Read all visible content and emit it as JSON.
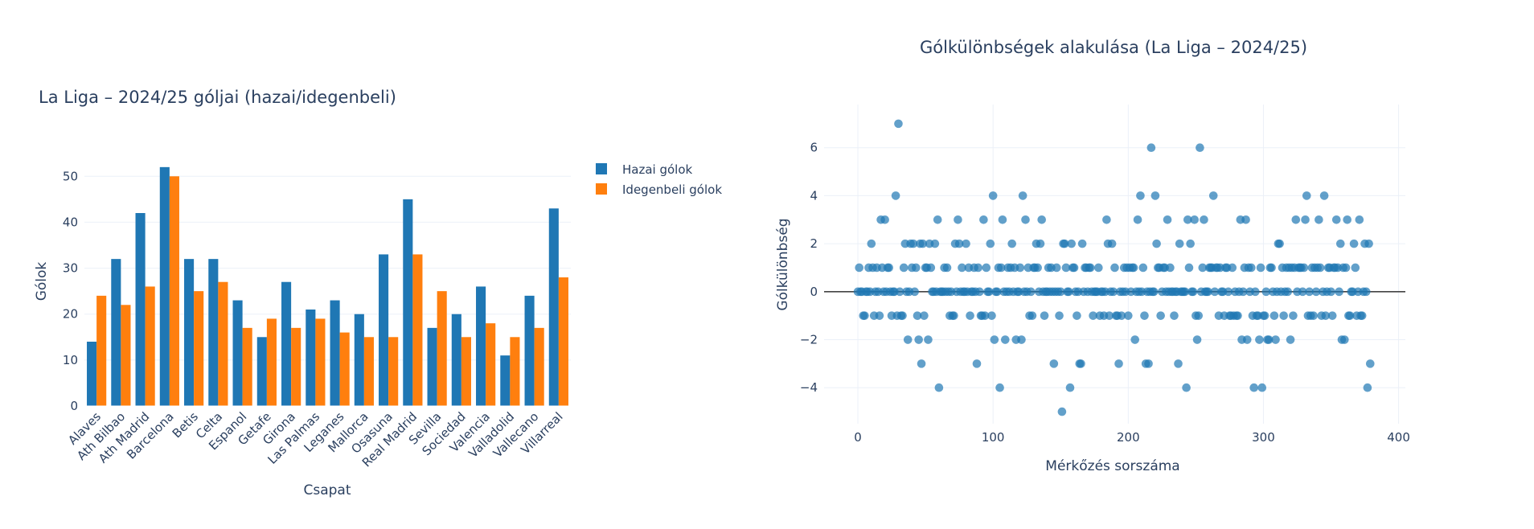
{
  "chart_data": [
    {
      "type": "bar",
      "title": "La Liga – 2024/25 góljai (hazai/idegenbeli)",
      "xlabel": "Csapat",
      "ylabel": "Gólok",
      "ylim": [
        0,
        56
      ],
      "yticks": [
        0,
        10,
        20,
        30,
        40,
        50
      ],
      "grid": true,
      "legend_position": "right",
      "categories": [
        "Alaves",
        "Ath Bilbao",
        "Ath Madrid",
        "Barcelona",
        "Betis",
        "Celta",
        "Espanol",
        "Getafe",
        "Girona",
        "Las Palmas",
        "Leganes",
        "Mallorca",
        "Osasuna",
        "Real Madrid",
        "Sevilla",
        "Sociedad",
        "Valencia",
        "Valladolid",
        "Vallecano",
        "Villarreal"
      ],
      "series": [
        {
          "name": "Hazai gólok",
          "color": "#1f77b4",
          "values": [
            14,
            32,
            42,
            52,
            32,
            32,
            23,
            15,
            27,
            21,
            23,
            20,
            33,
            45,
            17,
            20,
            26,
            11,
            24,
            43
          ]
        },
        {
          "name": "Idegenbeli gólok",
          "color": "#ff7f0e",
          "values": [
            24,
            22,
            26,
            50,
            25,
            27,
            17,
            19,
            17,
            19,
            16,
            15,
            15,
            33,
            25,
            15,
            18,
            15,
            17,
            28
          ]
        }
      ]
    },
    {
      "type": "scatter",
      "title": "Gólkülönbségek alakulása (La Liga – 2024/25)",
      "xlabel": "Mérkőzés sorszáma",
      "ylabel": "Gólkülönbség",
      "xlim": [
        -25,
        405
      ],
      "ylim": [
        -5.5,
        7.8
      ],
      "xticks": [
        0,
        100,
        200,
        300,
        400
      ],
      "yticks": [
        -4,
        -2,
        0,
        2,
        4,
        6
      ],
      "grid": true,
      "zero_line": true,
      "marker_color": "#1f77b4",
      "x": [
        0,
        1,
        2,
        3,
        4,
        5,
        6,
        7,
        8,
        9,
        10,
        11,
        12,
        13,
        14,
        15,
        16,
        17,
        18,
        19,
        20,
        21,
        22,
        23,
        24,
        25,
        26,
        27,
        28,
        29,
        30,
        31,
        32,
        33,
        34,
        35,
        36,
        37,
        38,
        39,
        40,
        41,
        42,
        43,
        44,
        45,
        46,
        47,
        48,
        49,
        50,
        51,
        52,
        53,
        54,
        55,
        56,
        57,
        58,
        59,
        60,
        61,
        62,
        63,
        64,
        65,
        66,
        67,
        68,
        69,
        70,
        71,
        72,
        73,
        74,
        75,
        76,
        77,
        78,
        79,
        80,
        81,
        82,
        83,
        84,
        85,
        86,
        87,
        88,
        89,
        90,
        91,
        92,
        93,
        94,
        95,
        96,
        97,
        98,
        99,
        100,
        101,
        102,
        103,
        104,
        105,
        106,
        107,
        108,
        109,
        110,
        111,
        112,
        113,
        114,
        115,
        116,
        117,
        118,
        119,
        120,
        121,
        122,
        123,
        124,
        125,
        126,
        127,
        128,
        129,
        130,
        131,
        132,
        133,
        134,
        135,
        136,
        137,
        138,
        139,
        140,
        141,
        142,
        143,
        144,
        145,
        146,
        147,
        148,
        149,
        150,
        151,
        152,
        153,
        154,
        155,
        156,
        157,
        158,
        159,
        160,
        161,
        162,
        163,
        164,
        165,
        166,
        167,
        168,
        169,
        170,
        171,
        172,
        173,
        174,
        175,
        176,
        177,
        178,
        179,
        180,
        181,
        182,
        183,
        184,
        185,
        186,
        187,
        188,
        189,
        190,
        191,
        192,
        193,
        194,
        195,
        196,
        197,
        198,
        199,
        200,
        201,
        202,
        203,
        204,
        205,
        206,
        207,
        208,
        209,
        210,
        211,
        212,
        213,
        214,
        215,
        216,
        217,
        218,
        219,
        220,
        221,
        222,
        223,
        224,
        225,
        226,
        227,
        228,
        229,
        230,
        231,
        232,
        233,
        234,
        235,
        236,
        237,
        238,
        239,
        240,
        241,
        242,
        243,
        244,
        245,
        246,
        247,
        248,
        249,
        250,
        251,
        252,
        253,
        254,
        255,
        256,
        257,
        258,
        259,
        260,
        261,
        262,
        263,
        264,
        265,
        266,
        267,
        268,
        269,
        270,
        271,
        272,
        273,
        274,
        275,
        276,
        277,
        278,
        279,
        280,
        281,
        282,
        283,
        284,
        285,
        286,
        287,
        288,
        289,
        290,
        291,
        292,
        293,
        294,
        295,
        296,
        297,
        298,
        299,
        300,
        301,
        302,
        303,
        304,
        305,
        306,
        307,
        308,
        309,
        310,
        311,
        312,
        313,
        314,
        315,
        316,
        317,
        318,
        319,
        320,
        321,
        322,
        323,
        324,
        325,
        326,
        327,
        328,
        329,
        330,
        331,
        332,
        333,
        334,
        335,
        336,
        337,
        338,
        339,
        340,
        341,
        342,
        343,
        344,
        345,
        346,
        347,
        348,
        349,
        350,
        351,
        352,
        353,
        354,
        355,
        356,
        357,
        358,
        359,
        360,
        361,
        362,
        363,
        364,
        365,
        366,
        367,
        368,
        369,
        370,
        371,
        372,
        373,
        374,
        375,
        376,
        377,
        378,
        379
      ],
      "y": [
        0,
        1,
        0,
        0,
        -1,
        -1,
        0,
        0,
        1,
        0,
        2,
        1,
        -1,
        0,
        1,
        0,
        -1,
        3,
        1,
        0,
        3,
        0,
        1,
        1,
        0,
        -1,
        0,
        0,
        4,
        -1,
        7,
        0,
        -1,
        -1,
        1,
        2,
        0,
        -2,
        0,
        2,
        1,
        2,
        0,
        1,
        -1,
        -2,
        2,
        -3,
        2,
        -1,
        1,
        1,
        -2,
        2,
        1,
        0,
        0,
        2,
        0,
        3,
        -4,
        0,
        0,
        0,
        1,
        0,
        1,
        0,
        -1,
        0,
        -1,
        -1,
        2,
        0,
        3,
        2,
        0,
        1,
        0,
        0,
        2,
        0,
        1,
        -1,
        0,
        0,
        1,
        0,
        -3,
        1,
        0,
        -1,
        -1,
        3,
        -1,
        1,
        0,
        0,
        2,
        -1,
        4,
        -2,
        0,
        0,
        1,
        -4,
        1,
        3,
        0,
        -2,
        0,
        1,
        0,
        1,
        2,
        0,
        1,
        -2,
        0,
        0,
        1,
        -2,
        4,
        0,
        3,
        0,
        1,
        -1,
        0,
        -1,
        1,
        1,
        2,
        1,
        0,
        2,
        3,
        0,
        -1,
        0,
        0,
        1,
        0,
        1,
        0,
        -3,
        0,
        1,
        0,
        -1,
        0,
        -5,
        2,
        2,
        1,
        0,
        0,
        -4,
        2,
        1,
        1,
        0,
        -1,
        0,
        -3,
        -3,
        2,
        0,
        1,
        1,
        0,
        1,
        1,
        0,
        -1,
        0,
        0,
        0,
        1,
        -1,
        0,
        0,
        -1,
        0,
        3,
        2,
        -1,
        0,
        2,
        0,
        1,
        -1,
        -1,
        -3,
        0,
        -1,
        0,
        1,
        0,
        1,
        -1,
        1,
        0,
        1,
        1,
        -2,
        0,
        3,
        0,
        4,
        0,
        1,
        -1,
        -3,
        0,
        -3,
        0,
        6,
        0,
        0,
        4,
        2,
        1,
        1,
        -1,
        0,
        1,
        1,
        0,
        3,
        0,
        1,
        0,
        0,
        -1,
        0,
        0,
        -3,
        2,
        0,
        0,
        0,
        0,
        -4,
        3,
        1,
        2,
        0,
        0,
        3,
        -1,
        -2,
        -1,
        6,
        0,
        1,
        3,
        0,
        0,
        0,
        1,
        1,
        1,
        4,
        0,
        1,
        1,
        -1,
        1,
        0,
        0,
        -1,
        1,
        1,
        0,
        -1,
        -1,
        1,
        -1,
        0,
        -1,
        -1,
        0,
        3,
        -2,
        0,
        1,
        3,
        -2,
        1,
        0,
        1,
        -1,
        -4,
        0,
        -1,
        -1,
        -2,
        1,
        -4,
        -1,
        -1,
        0,
        -2,
        -2,
        1,
        1,
        0,
        -1,
        -2,
        0,
        2,
        2,
        0,
        1,
        -1,
        0,
        1,
        0,
        1,
        -2,
        1,
        -1,
        1,
        3,
        0,
        1,
        1,
        1,
        0,
        1,
        3,
        4,
        -1,
        0,
        -1,
        1,
        -1,
        1,
        0,
        1,
        3,
        1,
        -1,
        0,
        4,
        -1,
        0,
        1,
        1,
        0,
        -1,
        1,
        1,
        3,
        1,
        0,
        2,
        -2,
        1,
        -2,
        1,
        3,
        -1,
        -1,
        0,
        0,
        2,
        1,
        -1,
        0,
        3,
        -1,
        -1,
        0,
        2,
        0,
        -4,
        2,
        -3
      ]
    }
  ],
  "legend": {
    "home_label": "Hazai gólok",
    "away_label": "Idegenbeli gólok"
  }
}
